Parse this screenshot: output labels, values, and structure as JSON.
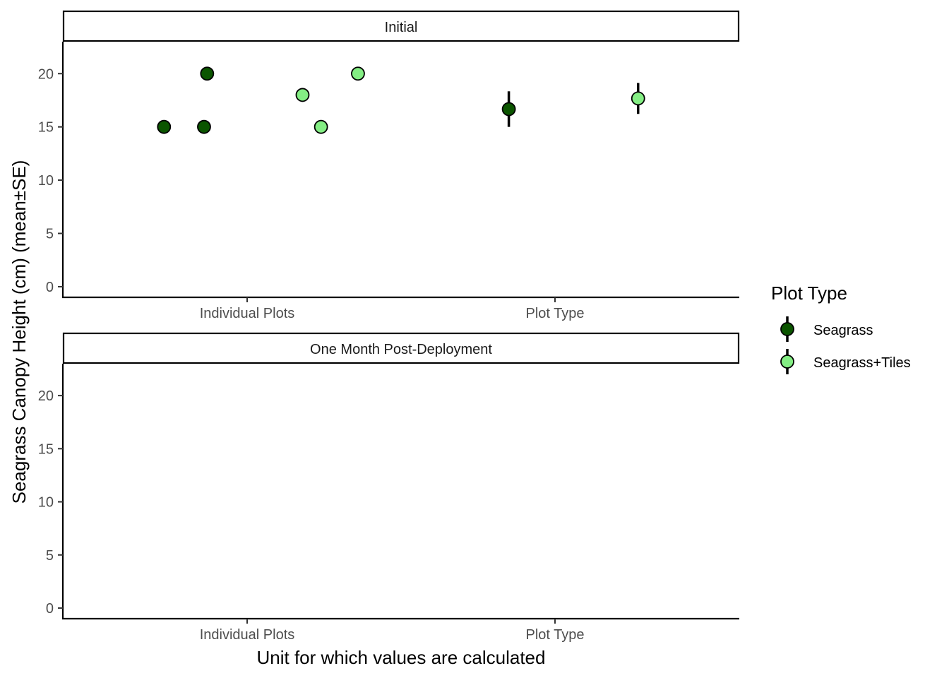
{
  "chart_data": {
    "type": "scatter",
    "xlabel": "Unit for which values are calculated",
    "ylabel": "Seagrass Canopy Height (cm)  (mean±SE)",
    "categories": [
      "Individual Plots",
      "Plot Type"
    ],
    "ylim": [
      -1,
      23
    ],
    "yticks": [
      0,
      5,
      10,
      15,
      20
    ],
    "grid": false,
    "legend": {
      "title": "Plot Type",
      "position": "right",
      "entries": [
        {
          "name": "Seagrass",
          "color": "#0B5500"
        },
        {
          "name": "Seagrass+Tiles",
          "color": "#84EE84"
        }
      ]
    },
    "panels": [
      {
        "title": "Initial",
        "series": [
          {
            "name": "Seagrass",
            "color": "#0B5500",
            "points": [
              {
                "category": "Individual Plots",
                "offset": -0.27,
                "y": 15
              },
              {
                "category": "Individual Plots",
                "offset": -0.14,
                "y": 15
              },
              {
                "category": "Individual Plots",
                "offset": -0.13,
                "y": 20
              },
              {
                "category": "Plot Type",
                "offset": -0.15,
                "y": 16.67,
                "se": 1.67
              }
            ]
          },
          {
            "name": "Seagrass+Tiles",
            "color": "#84EE84",
            "points": [
              {
                "category": "Individual Plots",
                "offset": 0.18,
                "y": 18
              },
              {
                "category": "Individual Plots",
                "offset": 0.24,
                "y": 15
              },
              {
                "category": "Individual Plots",
                "offset": 0.36,
                "y": 20
              },
              {
                "category": "Plot Type",
                "offset": 0.27,
                "y": 17.67,
                "se": 1.45
              }
            ]
          }
        ]
      },
      {
        "title": "One Month Post-Deployment",
        "series": []
      }
    ]
  }
}
